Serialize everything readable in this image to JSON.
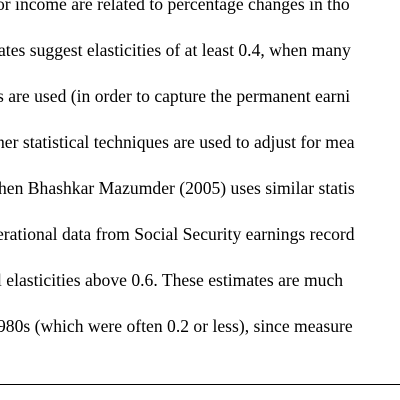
{
  "document": {
    "lines": [
      "or income are related to percentage changes in tho",
      "ates suggest elasticities of at least 0.4, when many",
      "s are used (in order to capture the permanent earni",
      "her statistical techniques are used to adjust for mea",
      "hen Bhashkar Mazumder (2005) uses similar statis",
      "erational data from Social Security earnings record",
      "l elasticities above 0.6. These estimates are much",
      "980s (which were often 0.2 or less), since measure"
    ]
  }
}
